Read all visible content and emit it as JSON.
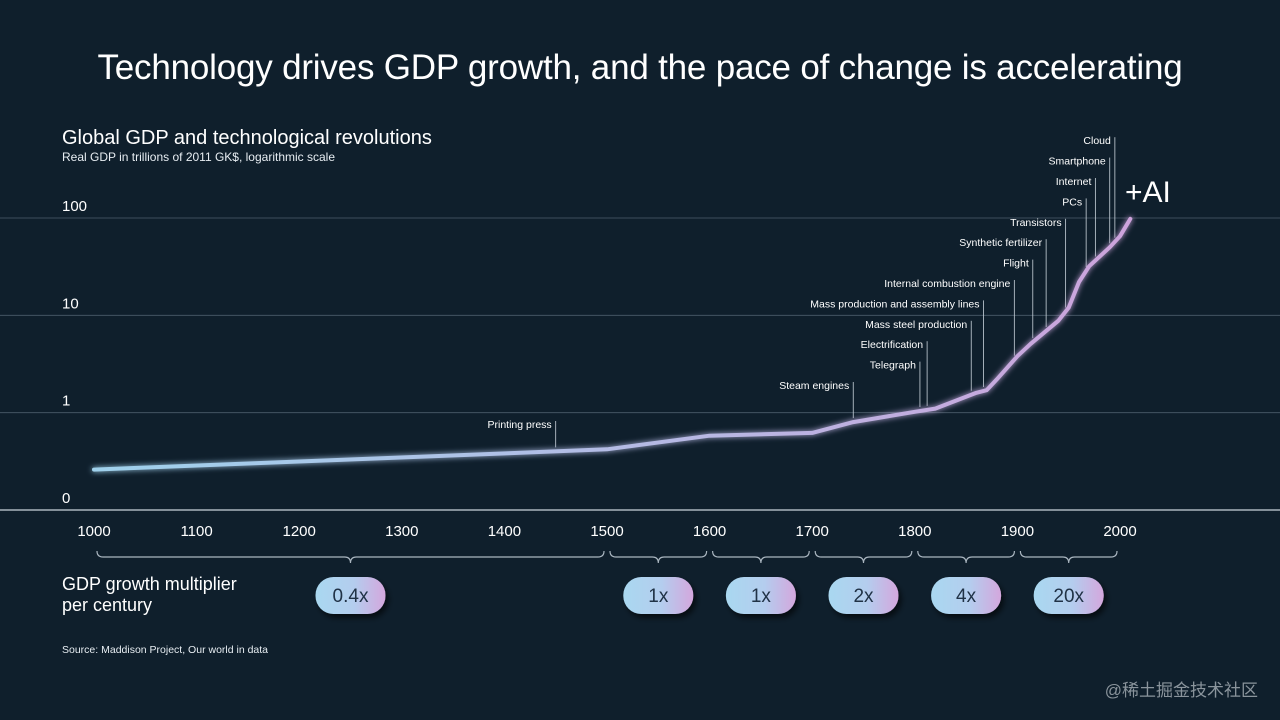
{
  "title": "Technology drives GDP growth, and the pace of change is accelerating",
  "chart_subtitle": "Global GDP and technological revolutions",
  "chart_unit": "Real GDP in trillions of 2011 GK$, logarithmic scale",
  "source": "Source: Maddison Project, Our world in data",
  "watermark": "@稀土掘金技术社区",
  "multiplier_title_line1": "GDP growth multiplier",
  "multiplier_title_line2": "per century",
  "colors": {
    "background": "#0f1f2c",
    "line_start": "#9fd1ec",
    "line_end": "#cda3dc",
    "pill_start": "#a9d8f0",
    "pill_end": "#d4a7dd"
  },
  "chart_data": {
    "type": "line",
    "yscale": "log",
    "ylim": [
      0.1,
      200
    ],
    "xlim": [
      1000,
      2020
    ],
    "y_ticks": [
      {
        "value": 0.1,
        "label": "0"
      },
      {
        "value": 1,
        "label": "1"
      },
      {
        "value": 10,
        "label": "10"
      },
      {
        "value": 100,
        "label": "100"
      }
    ],
    "x_ticks": [
      1000,
      1100,
      1200,
      1300,
      1400,
      1500,
      1600,
      1700,
      1800,
      1900,
      2000
    ],
    "grid": true,
    "series": [
      {
        "x": [
          1000,
          1500,
          1600,
          1700,
          1740,
          1800,
          1820,
          1860,
          1870,
          1880,
          1900,
          1913,
          1940,
          1950,
          1960,
          1970,
          1980,
          1990,
          2000,
          2010
        ],
        "y": [
          0.26,
          0.42,
          0.58,
          0.62,
          0.8,
          1.02,
          1.1,
          1.6,
          1.7,
          2.2,
          3.8,
          5.1,
          8.8,
          12,
          22,
          32,
          40,
          50,
          65,
          98
        ]
      }
    ],
    "events": [
      {
        "label": "Printing press",
        "year": 1450
      },
      {
        "label": "Steam engines",
        "year": 1740
      },
      {
        "label": "Telegraph",
        "year": 1805
      },
      {
        "label": "Electrification",
        "year": 1812
      },
      {
        "label": "Mass steel production",
        "year": 1855
      },
      {
        "label": "Mass production and assembly lines",
        "year": 1867
      },
      {
        "label": "Internal combustion engine",
        "year": 1897
      },
      {
        "label": "Flight",
        "year": 1915
      },
      {
        "label": "Synthetic fertilizer",
        "year": 1928
      },
      {
        "label": "Transistors",
        "year": 1947
      },
      {
        "label": "PCs",
        "year": 1967
      },
      {
        "label": "Internet",
        "year": 1976
      },
      {
        "label": "Smartphone",
        "year": 1990
      },
      {
        "label": "Cloud",
        "year": 1995
      }
    ],
    "ai_label": "+AI",
    "multipliers": [
      {
        "from": 1000,
        "to": 1500,
        "label": "0.4x"
      },
      {
        "from": 1500,
        "to": 1600,
        "label": "1x"
      },
      {
        "from": 1600,
        "to": 1700,
        "label": "1x"
      },
      {
        "from": 1700,
        "to": 1800,
        "label": "2x"
      },
      {
        "from": 1800,
        "to": 1900,
        "label": "4x"
      },
      {
        "from": 1900,
        "to": 2000,
        "label": "20x"
      }
    ]
  }
}
